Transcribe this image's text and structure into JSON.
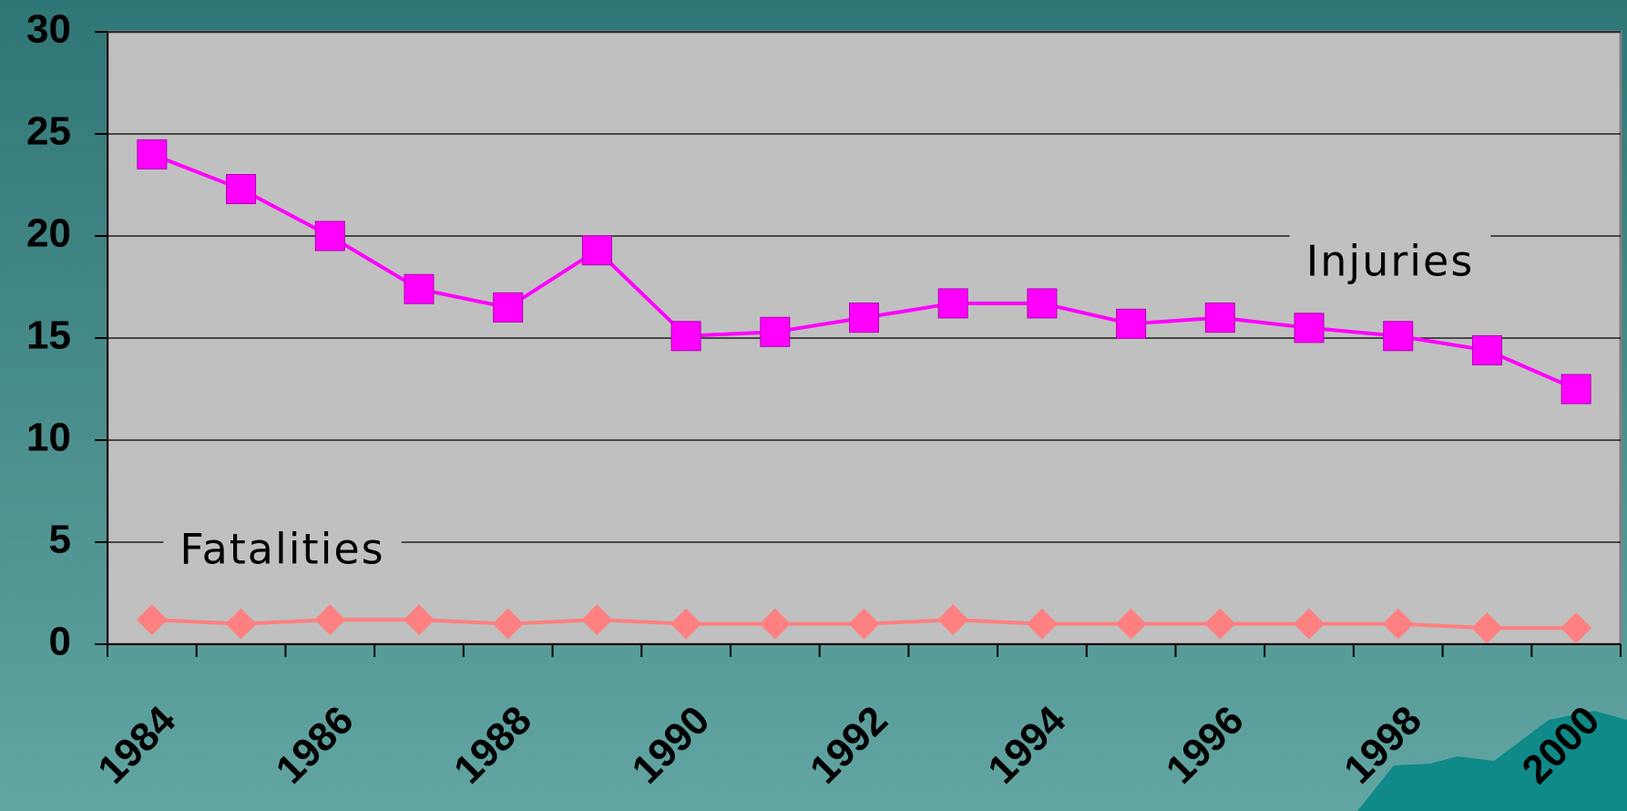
{
  "chart_data": {
    "type": "line",
    "categories": [
      "1984",
      null,
      "1986",
      null,
      "1988",
      null,
      "1990",
      null,
      "1992",
      null,
      "1994",
      null,
      "1996",
      null,
      "1998",
      null,
      "2000"
    ],
    "series": [
      {
        "name": "Injuries",
        "color": "#ff00ff",
        "marker": "square",
        "values": [
          24,
          22.3,
          20,
          17.4,
          16.5,
          19.3,
          15.1,
          15.3,
          16,
          16.7,
          16.7,
          15.7,
          16,
          15.5,
          15.1,
          14.4,
          12.5
        ]
      },
      {
        "name": "Fatalities",
        "color": "#ff8080",
        "marker": "diamond",
        "values": [
          1.2,
          1.0,
          1.2,
          1.2,
          1.0,
          1.2,
          1.0,
          1.0,
          1.0,
          1.2,
          1.0,
          1.0,
          1.0,
          1.0,
          1.0,
          0.8,
          0.8
        ]
      }
    ],
    "ylim": [
      0,
      30
    ],
    "yticks": [
      0,
      5,
      10,
      15,
      20,
      25,
      30
    ],
    "grid": true
  }
}
